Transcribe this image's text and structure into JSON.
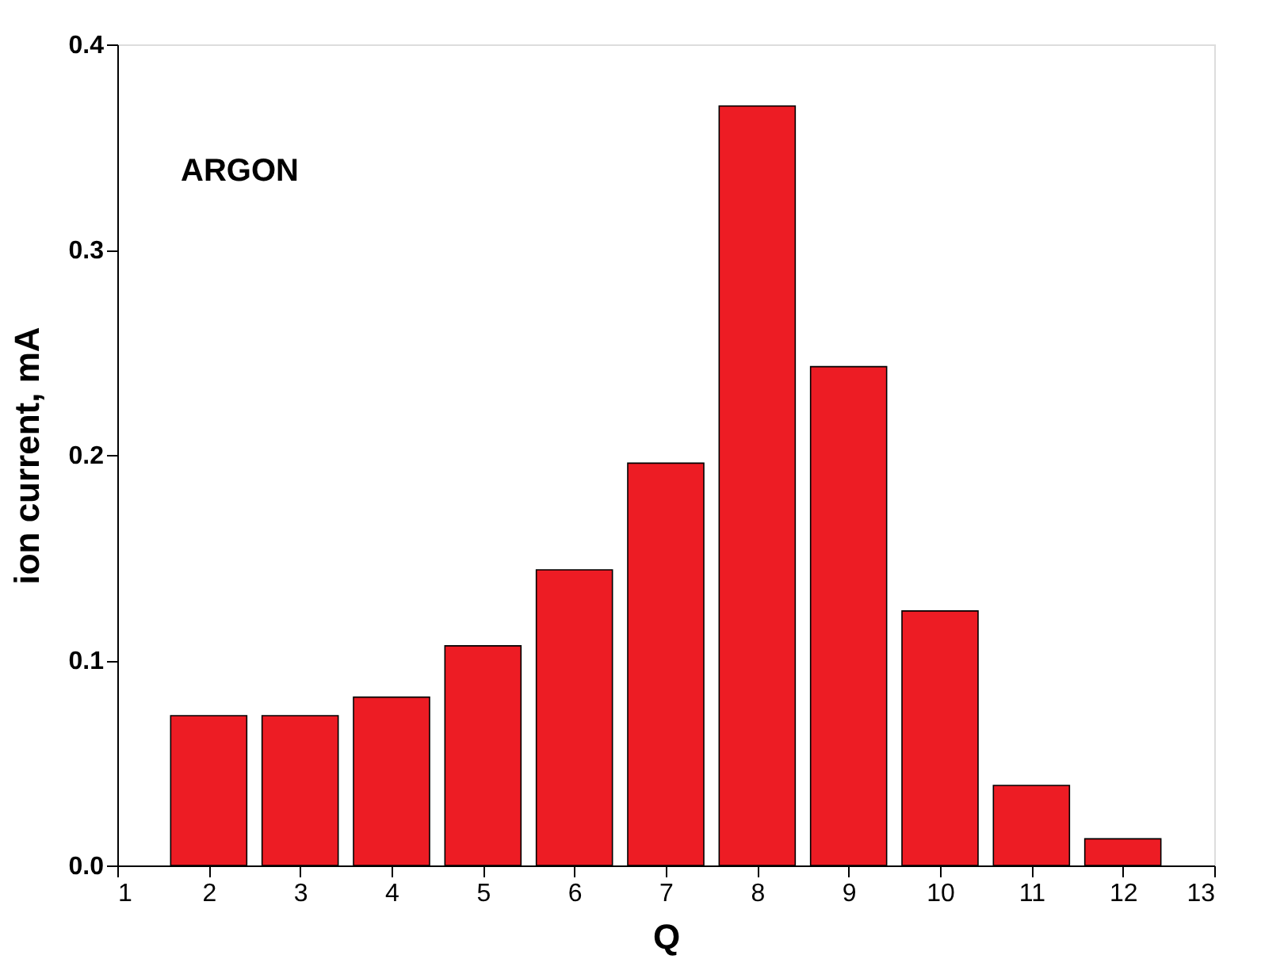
{
  "chart_data": {
    "type": "bar",
    "xlabel": "Q",
    "ylabel": "ion current, mA",
    "x": [
      2,
      3,
      4,
      5,
      6,
      7,
      8,
      9,
      10,
      11,
      12
    ],
    "values": [
      0.073,
      0.073,
      0.082,
      0.107,
      0.144,
      0.196,
      0.37,
      0.243,
      0.124,
      0.039,
      0.013
    ],
    "color": "#ed1c24",
    "xlim": [
      1,
      13
    ],
    "xticks": [
      1,
      2,
      3,
      4,
      5,
      6,
      7,
      8,
      9,
      10,
      11,
      12,
      13
    ],
    "ylim": [
      0,
      0.4
    ],
    "yticks": [
      {
        "value": 0,
        "label": "0.0"
      },
      0.1,
      0.2,
      0.3,
      0.4
    ],
    "annotations": [
      "ARGON"
    ],
    "grid": false
  }
}
